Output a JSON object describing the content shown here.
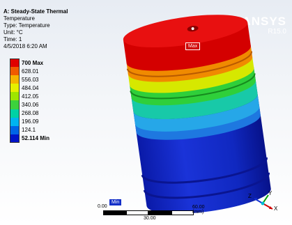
{
  "info": {
    "title": "A: Steady-State Thermal",
    "quantity": "Temperature",
    "type": "Type: Temperature",
    "unit": "Unit: °C",
    "time": "Time: 1",
    "date": "4/5/2018 6:20 AM"
  },
  "legend": [
    {
      "label": "700 Max",
      "color": "#e00000",
      "bold": true
    },
    {
      "label": "628.01",
      "color": "#f05a00"
    },
    {
      "label": "556.03",
      "color": "#f5b400"
    },
    {
      "label": "484.04",
      "color": "#e6f000"
    },
    {
      "label": "412.05",
      "color": "#9ee600"
    },
    {
      "label": "340.06",
      "color": "#3cd23c"
    },
    {
      "label": "268.08",
      "color": "#00d2a5"
    },
    {
      "label": "196.09",
      "color": "#00b4f0"
    },
    {
      "label": "124.1",
      "color": "#0064e6"
    },
    {
      "label": "52.114 Min",
      "color": "#0014c8",
      "bold": true
    }
  ],
  "logo": {
    "name": "ANSYS",
    "version": "R15.0"
  },
  "probes": {
    "max": "Max",
    "min": "Min"
  },
  "scale": {
    "start": "0.00",
    "mid": "30.00",
    "unit": "60.00 (mm)"
  },
  "triad": {
    "axes": [
      "X",
      "Y",
      "Z"
    ]
  },
  "colors": {
    "background_top": "#e7ecf3",
    "background_bottom": "#ffffff",
    "hot": "#e00000",
    "cold": "#0014c8"
  }
}
